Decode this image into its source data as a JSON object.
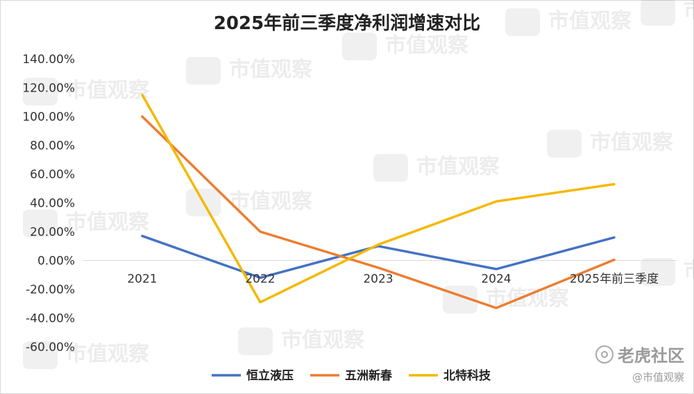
{
  "chart_data": {
    "type": "line",
    "title": "2025年前三季度净利润增速对比",
    "categories": [
      "2021",
      "2022",
      "2023",
      "2024",
      "2025年前三季度"
    ],
    "ylim": [
      -60,
      140
    ],
    "yticks": [
      "140.00%",
      "120.00%",
      "100.00%",
      "80.00%",
      "60.00%",
      "40.00%",
      "20.00%",
      "0.00%",
      "-20.00%",
      "-40.00%",
      "-60.00%"
    ],
    "grid": false,
    "legend_position": "bottom",
    "series": [
      {
        "name": "恒立液压",
        "color": "#4472C4",
        "values": [
          17,
          -12,
          10,
          -6,
          16
        ]
      },
      {
        "name": "五洲新春",
        "color": "#ED7D31",
        "values": [
          100,
          20,
          -5,
          -33,
          0.5
        ]
      },
      {
        "name": "北特科技",
        "color": "#F5B800",
        "values": [
          115,
          -29,
          11,
          41,
          53
        ]
      }
    ]
  },
  "watermark": {
    "text": "市值观察"
  },
  "branding": {
    "main": "老虎社区",
    "sub": "@市值观察"
  }
}
